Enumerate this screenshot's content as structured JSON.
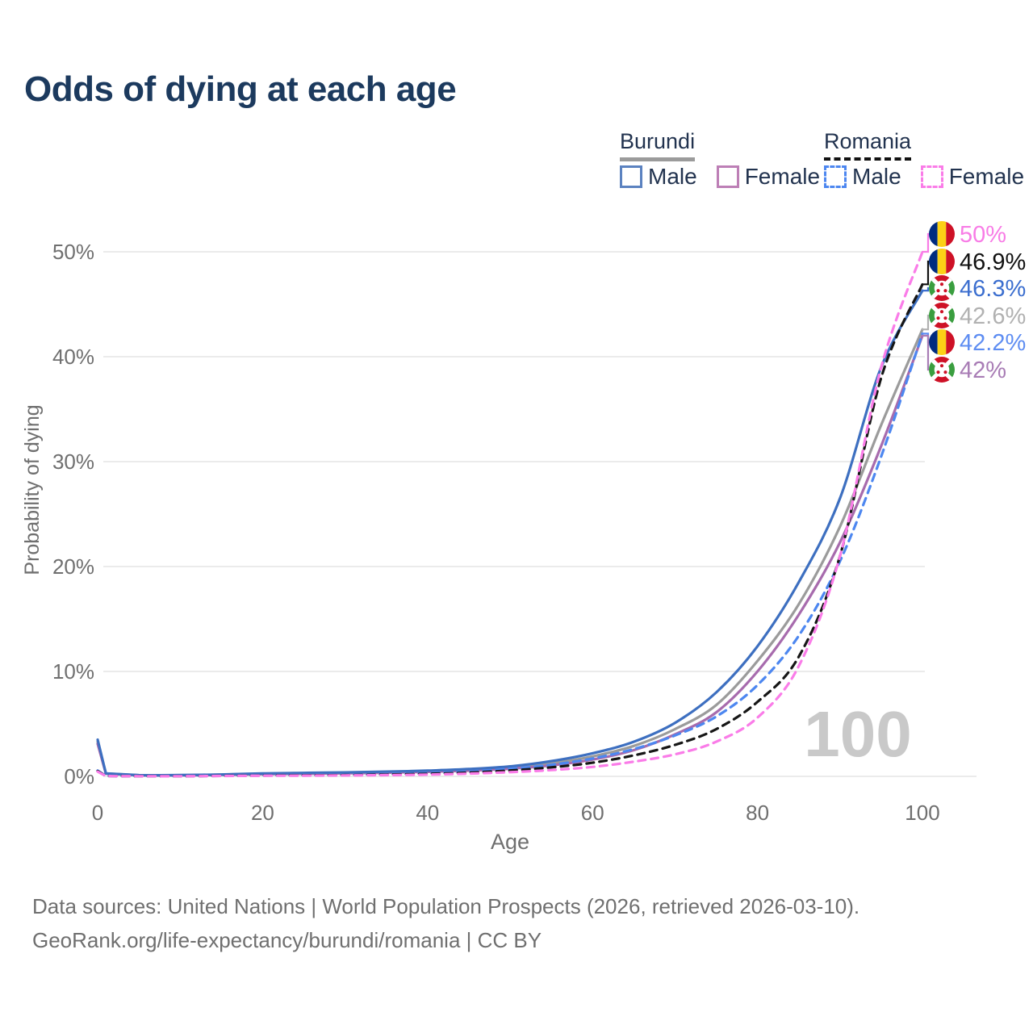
{
  "title": "Odds of dying at each age",
  "legend": {
    "groups": [
      {
        "country": "Burundi",
        "line_style": "solid",
        "underline_color": "#9b9b9b",
        "items": [
          {
            "label": "Male",
            "color": "#5b82c0",
            "dashed": false
          },
          {
            "label": "Female",
            "color": "#bd7fb6",
            "dashed": false
          }
        ]
      },
      {
        "country": "Romania",
        "line_style": "dashed",
        "underline_color": "#111111",
        "items": [
          {
            "label": "Male",
            "color": "#4d87f0",
            "dashed": true
          },
          {
            "label": "Female",
            "color": "#fa7ce8",
            "dashed": true
          }
        ]
      }
    ]
  },
  "chart_data": {
    "type": "line",
    "title": "Odds of dying at each age",
    "xlabel": "Age",
    "ylabel": "Probability of dying",
    "x_ticks": [
      0,
      20,
      40,
      60,
      80,
      100
    ],
    "y_tick_labels": [
      "0%",
      "10%",
      "20%",
      "30%",
      "40%",
      "50%"
    ],
    "y_tick_values": [
      0,
      10,
      20,
      30,
      40,
      50
    ],
    "xlim": [
      0,
      100
    ],
    "ylim_pct": [
      0,
      50
    ],
    "grid": "horizontal-only",
    "age_counter_label": "100",
    "ages": [
      0,
      1,
      5,
      10,
      15,
      20,
      25,
      30,
      35,
      40,
      45,
      50,
      55,
      60,
      65,
      70,
      75,
      80,
      85,
      90,
      95,
      100
    ],
    "series": [
      {
        "id": "burundi_both",
        "name": "Burundi Both sexes",
        "country": "Burundi",
        "sex": "both",
        "color": "#9b9b9b",
        "dashed": false,
        "values_pct": [
          3.3,
          0.27,
          0.11,
          0.11,
          0.16,
          0.25,
          0.29,
          0.34,
          0.4,
          0.49,
          0.62,
          0.84,
          1.25,
          1.9,
          2.9,
          4.5,
          6.8,
          11.0,
          16.4,
          23.8,
          33.5,
          42.6
        ]
      },
      {
        "id": "burundi_female",
        "name": "Burundi Female",
        "country": "Burundi",
        "sex": "female",
        "color": "#a76bad",
        "dashed": false,
        "values_pct": [
          3.1,
          0.25,
          0.1,
          0.1,
          0.14,
          0.21,
          0.25,
          0.29,
          0.35,
          0.43,
          0.55,
          0.73,
          1.05,
          1.6,
          2.5,
          4.0,
          6.1,
          10.0,
          15.4,
          22.3,
          31.5,
          42.0
        ]
      },
      {
        "id": "burundi_male",
        "name": "Burundi Male",
        "country": "Burundi",
        "sex": "male",
        "color": "#3d6fc0",
        "dashed": false,
        "values_pct": [
          3.5,
          0.28,
          0.12,
          0.12,
          0.18,
          0.28,
          0.33,
          0.38,
          0.45,
          0.55,
          0.7,
          0.95,
          1.45,
          2.2,
          3.3,
          5.1,
          8.0,
          12.4,
          18.5,
          26.5,
          39.0,
          46.3
        ]
      },
      {
        "id": "romania_male",
        "name": "Romania Male",
        "country": "Romania",
        "sex": "male",
        "color": "#4d87f0",
        "dashed": true,
        "values_pct": [
          0.55,
          0.04,
          0.02,
          0.02,
          0.06,
          0.1,
          0.12,
          0.15,
          0.21,
          0.3,
          0.46,
          0.72,
          1.1,
          1.7,
          2.6,
          3.9,
          5.7,
          8.7,
          13.4,
          20.5,
          30.5,
          42.2
        ]
      },
      {
        "id": "romania_both",
        "name": "Romania Both sexes",
        "country": "Romania",
        "sex": "both",
        "color": "#161616",
        "dashed": true,
        "values_pct": [
          0.5,
          0.035,
          0.018,
          0.018,
          0.05,
          0.08,
          0.1,
          0.12,
          0.17,
          0.24,
          0.36,
          0.56,
          0.86,
          1.3,
          2.0,
          3.0,
          4.5,
          7.1,
          11.4,
          21.0,
          38.0,
          46.9
        ]
      },
      {
        "id": "romania_female",
        "name": "Romania Female",
        "country": "Romania",
        "sex": "female",
        "color": "#fa7ce8",
        "dashed": true,
        "values_pct": [
          0.45,
          0.03,
          0.015,
          0.015,
          0.04,
          0.06,
          0.07,
          0.09,
          0.12,
          0.17,
          0.26,
          0.4,
          0.6,
          0.9,
          1.4,
          2.1,
          3.3,
          5.6,
          10.5,
          21.0,
          39.0,
          50.0
        ]
      }
    ],
    "end_labels": [
      {
        "series": "romania_female",
        "label": "50%",
        "color": "#f87ce6",
        "flag": "romania"
      },
      {
        "series": "romania_both",
        "label": "46.9%",
        "color": "#111111",
        "flag": "romania"
      },
      {
        "series": "burundi_male",
        "label": "46.3%",
        "color": "#3b6ecf",
        "flag": "burundi"
      },
      {
        "series": "burundi_both",
        "label": "42.6%",
        "color": "#b1b1b1",
        "flag": "burundi"
      },
      {
        "series": "romania_male",
        "label": "42.2%",
        "color": "#5e8df2",
        "flag": "romania"
      },
      {
        "series": "burundi_female",
        "label": "42%",
        "color": "#a87cb5",
        "flag": "burundi"
      }
    ],
    "flag_colors": {
      "romania": {
        "blue": "#002B7F",
        "yellow": "#FCD116",
        "red": "#CE1126"
      },
      "burundi": {
        "red": "#CE1126",
        "green": "#3a9e3f",
        "white": "#ffffff"
      }
    },
    "axis_text_color": "#6f6f6f",
    "gridline_color": "#ebebeb",
    "watermark_color": "#c9c9c9"
  },
  "footer": {
    "line1": "Data sources: United Nations | World Population Prospects (2026, retrieved 2026-03-10).",
    "line2": "GeoRank.org/life-expectancy/burundi/romania | CC BY"
  }
}
